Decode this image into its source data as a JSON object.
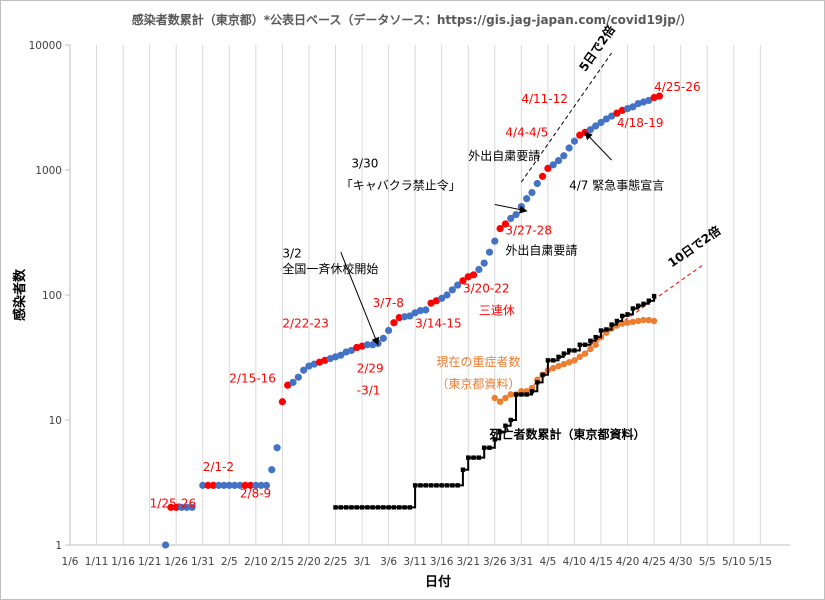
{
  "chart_data": {
    "type": "scatter",
    "title": "感染者数累計（東京都）*公表日ベース（データソース：https://gis.jag-japan.com/covid19jp/）",
    "xlabel": "日付",
    "ylabel": "感染者数",
    "yscale": "log",
    "ylim": [
      1,
      10000
    ],
    "y_ticks": [
      "1",
      "10",
      "100",
      "1000",
      "10000"
    ],
    "x_start": "1/6",
    "x_ticks": [
      "1/6",
      "1/11",
      "1/16",
      "1/21",
      "1/26",
      "1/31",
      "2/5",
      "2/10",
      "2/15",
      "2/20",
      "2/25",
      "3/1",
      "3/6",
      "3/11",
      "3/16",
      "3/21",
      "3/26",
      "3/31",
      "4/5",
      "4/10",
      "4/15",
      "4/20",
      "4/25",
      "4/30",
      "5/5",
      "5/10",
      "5/15"
    ],
    "grid": "vertical",
    "colors": {
      "blue": "#4472c4",
      "red": "#ff0000",
      "orange": "#ed7d31",
      "black": "#000000",
      "annotation_red": "#ff0000"
    },
    "series": [
      {
        "name": "",
        "color": "#4472c4",
        "x": [
          "1/24",
          "1/25",
          "1/26",
          "1/27",
          "1/28",
          "1/29",
          "1/30",
          "1/31",
          "2/1",
          "2/2",
          "2/3",
          "2/4",
          "2/5",
          "2/6",
          "2/7",
          "2/8",
          "2/9",
          "2/10",
          "2/11",
          "2/12",
          "2/13",
          "2/14",
          "2/15",
          "2/16",
          "2/17",
          "2/18",
          "2/19",
          "2/20",
          "2/21",
          "2/22",
          "2/23",
          "2/24",
          "2/25",
          "2/26",
          "2/27",
          "2/28",
          "2/29",
          "3/1",
          "3/2",
          "3/3",
          "3/4",
          "3/5",
          "3/6",
          "3/7",
          "3/8",
          "3/9",
          "3/10",
          "3/11",
          "3/12",
          "3/13",
          "3/14",
          "3/15",
          "3/16",
          "3/17",
          "3/18",
          "3/19",
          "3/20",
          "3/21",
          "3/22",
          "3/23",
          "3/24",
          "3/25",
          "3/26",
          "3/27",
          "3/28",
          "3/29",
          "3/30",
          "3/31",
          "4/1",
          "4/2",
          "4/3",
          "4/4",
          "4/5",
          "4/6",
          "4/7",
          "4/8",
          "4/9",
          "4/10",
          "4/11",
          "4/12",
          "4/13",
          "4/14",
          "4/15",
          "4/16",
          "4/17",
          "4/18",
          "4/19",
          "4/20",
          "4/21",
          "4/22",
          "4/23",
          "4/24",
          "4/25",
          "4/26"
        ],
        "y": [
          1,
          null,
          2,
          2,
          2,
          2,
          null,
          3,
          3,
          3,
          3,
          3,
          3,
          3,
          3,
          3,
          3,
          3,
          3,
          3,
          4,
          6,
          14,
          19,
          20,
          22,
          25,
          27,
          28,
          29,
          30,
          31,
          32,
          33,
          35,
          36,
          38,
          39,
          40,
          40,
          41,
          45,
          52,
          60,
          66,
          67,
          68,
          72,
          75,
          76,
          86,
          90,
          94,
          100,
          110,
          120,
          130,
          140,
          145,
          160,
          180,
          220,
          270,
          340,
          370,
          410,
          440,
          510,
          590,
          660,
          780,
          890,
          1030,
          1100,
          1190,
          1300,
          1500,
          1700,
          1900,
          2000,
          2100,
          2250,
          2400,
          2560,
          2700,
          2850,
          3000,
          3100,
          3200,
          3400,
          3500,
          3600,
          3800,
          3900
        ],
        "red_highlight_dates": [
          "1/25",
          "1/26",
          "2/1",
          "2/2",
          "2/8",
          "2/9",
          "2/15",
          "2/16",
          "2/22",
          "2/23",
          "2/29",
          "3/1",
          "3/7",
          "3/8",
          "3/14",
          "3/15",
          "3/20",
          "3/21",
          "3/22",
          "3/27",
          "3/28",
          "4/4",
          "4/5",
          "4/11",
          "4/12",
          "4/18",
          "4/19",
          "4/25",
          "4/26"
        ]
      },
      {
        "name": "現在の重症者数\n（東京都資料）",
        "color": "#ed7d31",
        "x": [
          "3/26",
          "3/27",
          "3/28",
          "3/29",
          "3/30",
          "3/31",
          "4/1",
          "4/2",
          "4/3",
          "4/4",
          "4/5",
          "4/6",
          "4/7",
          "4/8",
          "4/9",
          "4/10",
          "4/11",
          "4/12",
          "4/13",
          "4/14",
          "4/15",
          "4/16",
          "4/17",
          "4/18",
          "4/19",
          "4/20",
          "4/21",
          "4/22",
          "4/23",
          "4/24",
          "4/25"
        ],
        "y": [
          15,
          14,
          15,
          16,
          16,
          17,
          17,
          18,
          21,
          23,
          25,
          26,
          27,
          28,
          29,
          30,
          32,
          34,
          37,
          40,
          46,
          50,
          54,
          57,
          59,
          60,
          61,
          62,
          63,
          63,
          62
        ]
      },
      {
        "name": "死亡者数累計（東京都資料）",
        "color": "#000000",
        "x": [
          "2/25",
          "3/11",
          "3/20",
          "3/21",
          "3/22",
          "3/23",
          "3/24",
          "3/25",
          "3/26",
          "3/27",
          "3/28",
          "3/29",
          "3/30",
          "3/31",
          "4/1",
          "4/2",
          "4/3",
          "4/4",
          "4/5",
          "4/6",
          "4/7",
          "4/8",
          "4/9",
          "4/10",
          "4/11",
          "4/12",
          "4/13",
          "4/14",
          "4/15",
          "4/16",
          "4/17",
          "4/18",
          "4/19",
          "4/20",
          "4/21",
          "4/22",
          "4/23",
          "4/24",
          "4/25"
        ],
        "y": [
          2,
          3,
          4,
          5,
          5,
          5,
          6,
          6,
          7,
          8,
          9,
          10,
          16,
          16,
          16,
          17,
          20,
          23,
          30,
          30,
          32,
          34,
          36,
          36,
          40,
          40,
          43,
          46,
          52,
          53,
          58,
          62,
          68,
          70,
          78,
          82,
          85,
          90,
          98
        ]
      }
    ],
    "trendlines": [
      {
        "label": "5日で2倍",
        "color": "#000000",
        "style": "dashed",
        "from": [
          "3/31",
          800
        ],
        "to": [
          "4/24",
          23000
        ]
      },
      {
        "label": "10日で2倍",
        "color": "#ff0000",
        "style": "dashed",
        "from": [
          "4/13",
          40
        ],
        "to": [
          "5/4",
          172
        ]
      }
    ],
    "annotations": [
      {
        "text": "1/25-26",
        "color": "red",
        "x": "1/21",
        "y": 2.0
      },
      {
        "text": "2/1-2",
        "color": "red",
        "x": "1/31",
        "y": 3.9
      },
      {
        "text": "2/8-9",
        "color": "red",
        "x": "2/7",
        "y": 2.4
      },
      {
        "text": "2/15-16",
        "color": "red",
        "x": "2/5",
        "y": 20
      },
      {
        "text": "2/22-23",
        "color": "red",
        "x": "2/15",
        "y": 55
      },
      {
        "text": "2/29",
        "color": "red",
        "x": "2/29",
        "y": 24
      },
      {
        "text": "-3/1",
        "color": "red",
        "x": "2/29",
        "y": 16
      },
      {
        "text": "3/2",
        "color": "black",
        "x": "2/15",
        "y": 200
      },
      {
        "text": "全国一斉休校開始",
        "color": "black",
        "x": "2/15",
        "y": 150
      },
      {
        "text": "3/7-8",
        "color": "red",
        "x": "3/3",
        "y": 80
      },
      {
        "text": "3/14-15",
        "color": "red",
        "x": "3/11",
        "y": 55
      },
      {
        "text": "3/20-22",
        "color": "red",
        "x": "3/20",
        "y": 105
      },
      {
        "text": "三連休",
        "color": "red",
        "x": "3/23",
        "y": 70
      },
      {
        "text": "3/27-28",
        "color": "red",
        "x": "3/28",
        "y": 305
      },
      {
        "text": "外出自粛要請",
        "color": "black",
        "x": "3/28",
        "y": 210
      },
      {
        "text": "3/30",
        "color": "black",
        "x": "2/28",
        "y": 1050
      },
      {
        "text": "「キャバクラ禁止令」",
        "color": "black",
        "x": "2/26",
        "y": 700
      },
      {
        "text": "4/4-4/5",
        "color": "red",
        "x": "3/28",
        "y": 1850
      },
      {
        "text": "外出自粛要請",
        "color": "black",
        "x": "3/21",
        "y": 1200
      },
      {
        "text": "4/11-12",
        "color": "red",
        "x": "3/31",
        "y": 3450
      },
      {
        "text": "4/7 緊急事態宣言",
        "color": "black",
        "x": "4/9",
        "y": 700
      },
      {
        "text": "4/18-19",
        "color": "red",
        "x": "4/18",
        "y": 2200
      },
      {
        "text": "4/25-26",
        "color": "red",
        "x": "4/25",
        "y": 4300
      },
      {
        "text": "現在の重症者数",
        "color": "orange",
        "x": "3/15",
        "y": 27
      },
      {
        "text": "（東京都資料）",
        "color": "orange",
        "x": "3/15",
        "y": 18
      },
      {
        "text": "死亡者数累計（東京都資料）",
        "color": "bold",
        "x": "3/25",
        "y": 7.1
      }
    ],
    "arrows": [
      {
        "from": [
          "2/26",
          220
        ],
        "to": [
          "3/4",
          40
        ]
      },
      {
        "from": [
          "3/26",
          530
        ],
        "to": [
          "4/1",
          470
        ]
      },
      {
        "from": [
          "4/17",
          1200
        ],
        "to": [
          "4/12",
          2000
        ]
      }
    ]
  }
}
